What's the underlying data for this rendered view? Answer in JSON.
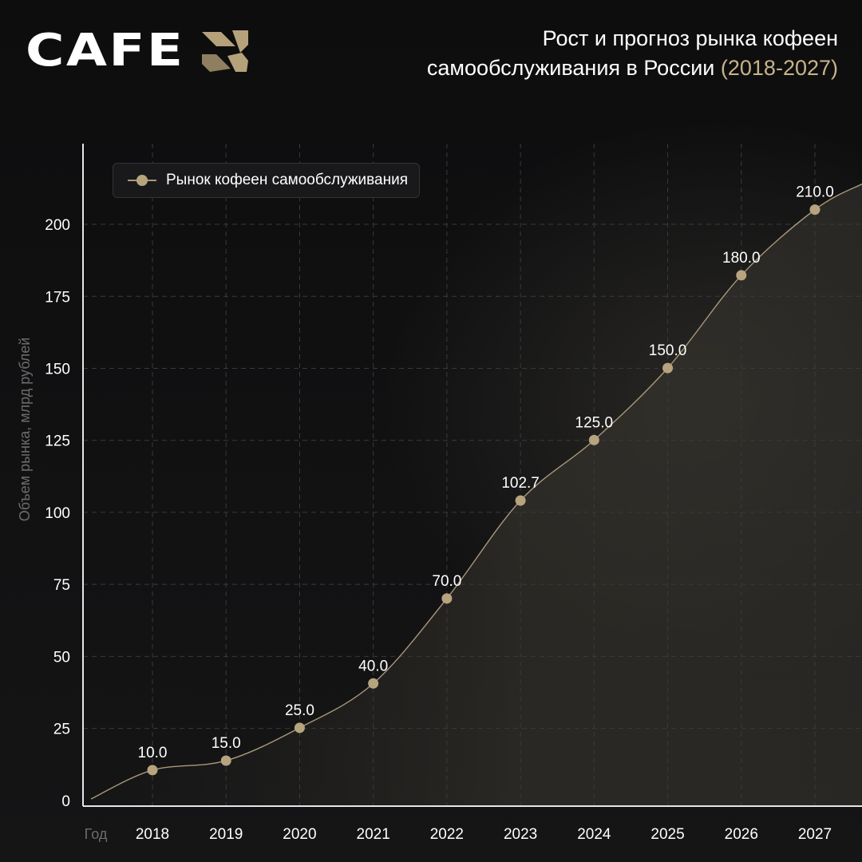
{
  "brand": {
    "logo_text": "CAFE"
  },
  "header": {
    "title_line1": "Рост и прогноз рынка кофеен",
    "title_line2": "самообслуживания в России",
    "title_years": "(2018-2027)"
  },
  "colors": {
    "background": "#0f0f10",
    "accent": "#c8b48a",
    "marker": "#b7a47f",
    "line": "#a8987a"
  },
  "chart_data": {
    "type": "line",
    "title": "Рост и прогноз рынка кофеен самообслуживания в России (2018-2027)",
    "xlabel": "Год",
    "ylabel": "Объем рынка, млрд рублей",
    "categories": [
      "2018",
      "2019",
      "2020",
      "2021",
      "2022",
      "2023",
      "2024",
      "2025",
      "2026",
      "2027"
    ],
    "series": [
      {
        "name": "Рынок кофеен самообслуживания",
        "values": [
          10.0,
          15.0,
          25.0,
          40.0,
          70.0,
          102.7,
          125.0,
          150.0,
          180.0,
          210.0
        ],
        "point_y": [
          10.5,
          13.8,
          25.2,
          40.6,
          70.1,
          104.1,
          125.1,
          150.1,
          182.3,
          205.1
        ],
        "labels": [
          "10.0",
          "15.0",
          "25.0",
          "40.0",
          "70.0",
          "102.7",
          "125.0",
          "150.0",
          "180.0",
          "210.0"
        ]
      }
    ],
    "yticks": [
      "0",
      "25",
      "50",
      "75",
      "100",
      "125",
      "150",
      "175",
      "200"
    ],
    "ylim": [
      -2,
      228
    ],
    "grid": true,
    "legend_position": "top-left"
  }
}
